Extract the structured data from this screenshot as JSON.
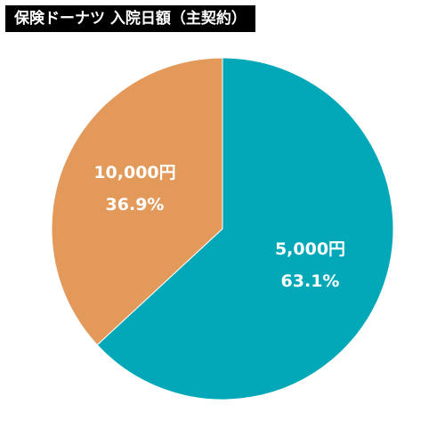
{
  "title": "保険ドーナツ 入院日額（主契約）",
  "chart_data": {
    "type": "pie",
    "categories": [
      "5,000円",
      "10,000円"
    ],
    "values": [
      63.1,
      36.9
    ],
    "percent_labels": [
      "63.1%",
      "36.9%"
    ],
    "colors": [
      "#02a8b8",
      "#e3995a"
    ],
    "start_angle_deg": 0,
    "direction": "clockwise"
  }
}
